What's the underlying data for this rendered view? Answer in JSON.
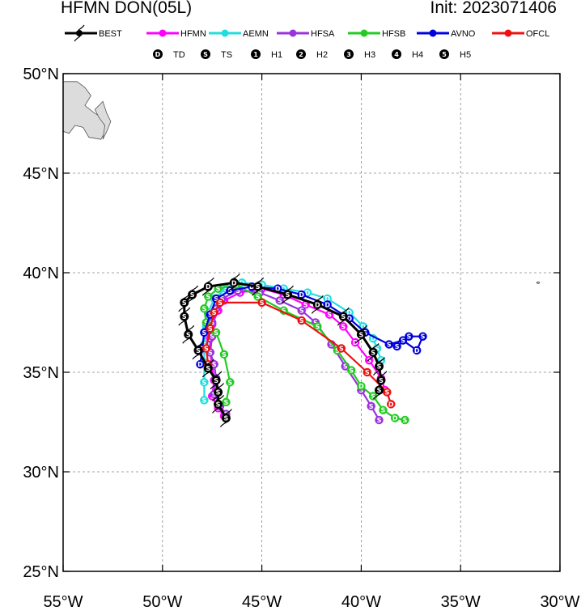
{
  "header": {
    "title": "HFMN DON(05L)",
    "init": "Init: 2023071406"
  },
  "legend": [
    {
      "name": "BEST",
      "color": "#000000"
    },
    {
      "name": "HFMN",
      "color": "#ff00ff"
    },
    {
      "name": "AEMN",
      "color": "#22dddd"
    },
    {
      "name": "HFSA",
      "color": "#9933dd"
    },
    {
      "name": "HFSB",
      "color": "#22cc22"
    },
    {
      "name": "AVNO",
      "color": "#0000dd"
    },
    {
      "name": "OFCL",
      "color": "#ee1111"
    }
  ],
  "categories": [
    {
      "glyph": "D",
      "label": "TD"
    },
    {
      "glyph": "S",
      "label": "TS"
    },
    {
      "glyph": "1",
      "label": "H1"
    },
    {
      "glyph": "2",
      "label": "H2"
    },
    {
      "glyph": "3",
      "label": "H3"
    },
    {
      "glyph": "4",
      "label": "H4"
    },
    {
      "glyph": "5",
      "label": "H5"
    }
  ],
  "axes": {
    "lon": [
      -55,
      -50,
      -45,
      -40,
      -35,
      -30
    ],
    "lon_labels": [
      "55°W",
      "50°W",
      "45°W",
      "40°W",
      "35°W",
      "30°W"
    ],
    "lat": [
      25,
      30,
      35,
      40,
      45,
      50
    ],
    "lat_labels": [
      "25°N",
      "30°N",
      "35°N",
      "40°N",
      "45°N",
      "50°N"
    ],
    "grid": true
  },
  "tracks": [
    {
      "name": "BEST",
      "color": "#000000",
      "points": [
        [
          -46.8,
          32.7
        ],
        [
          -47.2,
          33.4
        ],
        [
          -47.2,
          34.0
        ],
        [
          -47.3,
          34.6
        ],
        [
          -47.7,
          35.2
        ],
        [
          -48.2,
          36.1
        ],
        [
          -48.7,
          36.9
        ],
        [
          -48.9,
          37.8
        ],
        [
          -48.9,
          38.5
        ],
        [
          -48.5,
          38.9
        ],
        [
          -47.7,
          39.3
        ],
        [
          -46.4,
          39.5
        ],
        [
          -45.2,
          39.3
        ],
        [
          -43.7,
          38.9
        ],
        [
          -42.2,
          38.4
        ],
        [
          -40.9,
          37.8
        ],
        [
          -40.0,
          36.9
        ],
        [
          -39.4,
          36.0
        ],
        [
          -39.1,
          35.3
        ],
        [
          -39.0,
          34.6
        ],
        [
          -39.1,
          34.1
        ]
      ],
      "labels": [
        "S",
        "S",
        "S",
        "S",
        "S",
        "S",
        "S",
        "S",
        "S",
        "S",
        "D",
        "D",
        "S",
        "S",
        "D",
        "S",
        "S",
        "S",
        "S",
        "S",
        "S"
      ]
    },
    {
      "name": "HFMN",
      "color": "#ff00ff",
      "points": [
        [
          -46.9,
          32.8
        ],
        [
          -47.2,
          33.2
        ],
        [
          -47.5,
          33.8
        ],
        [
          -47.4,
          34.6
        ],
        [
          -47.5,
          35.3
        ],
        [
          -47.6,
          36.0
        ],
        [
          -47.6,
          36.7
        ],
        [
          -47.5,
          37.4
        ],
        [
          -47.2,
          38.1
        ],
        [
          -46.9,
          38.6
        ],
        [
          -46.1,
          39.0
        ],
        [
          -45.0,
          39.2
        ],
        [
          -43.9,
          38.9
        ],
        [
          -42.8,
          38.4
        ],
        [
          -41.6,
          37.9
        ],
        [
          -40.9,
          37.3
        ],
        [
          -40.3,
          36.5
        ],
        [
          -39.6,
          35.6
        ],
        [
          -39.0,
          34.7
        ],
        [
          -38.8,
          34.1
        ]
      ],
      "labels": [
        "S",
        "S",
        "S",
        "S",
        "S",
        "S",
        "S",
        "S",
        "S",
        "S",
        "S",
        "S",
        "S",
        "S",
        "S",
        "S",
        "D",
        "S",
        "S",
        "S"
      ]
    },
    {
      "name": "AEMN",
      "color": "#22dddd",
      "points": [
        [
          -47.9,
          33.6
        ],
        [
          -47.9,
          34.5
        ],
        [
          -47.9,
          35.5
        ],
        [
          -47.9,
          36.4
        ],
        [
          -47.8,
          37.3
        ],
        [
          -47.7,
          38.0
        ],
        [
          -47.4,
          38.7
        ],
        [
          -46.8,
          39.2
        ],
        [
          -46.0,
          39.5
        ],
        [
          -45.0,
          39.4
        ],
        [
          -43.9,
          39.2
        ],
        [
          -42.7,
          39.0
        ],
        [
          -41.7,
          38.7
        ],
        [
          -40.6,
          38.0
        ],
        [
          -39.9,
          37.3
        ],
        [
          -39.4,
          36.7
        ],
        [
          -39.2,
          36.2
        ],
        [
          -39.0,
          35.6
        ]
      ],
      "labels": [
        "S",
        "S",
        "S",
        "S",
        "S",
        "S",
        "S",
        "S",
        "D",
        "D",
        "D",
        "D",
        "D",
        "D",
        "D",
        "D",
        "S",
        "S"
      ]
    },
    {
      "name": "HFSA",
      "color": "#9933dd",
      "points": [
        [
          -46.8,
          32.9
        ],
        [
          -47.1,
          33.3
        ],
        [
          -47.4,
          33.9
        ],
        [
          -47.3,
          34.7
        ],
        [
          -47.4,
          35.4
        ],
        [
          -47.6,
          36.0
        ],
        [
          -47.5,
          36.8
        ],
        [
          -47.5,
          37.5
        ],
        [
          -47.3,
          38.2
        ],
        [
          -47.0,
          38.7
        ],
        [
          -46.2,
          39.1
        ],
        [
          -45.1,
          39.0
        ],
        [
          -44.1,
          38.6
        ],
        [
          -43.0,
          38.1
        ],
        [
          -42.3,
          37.5
        ],
        [
          -41.5,
          36.4
        ],
        [
          -40.8,
          35.3
        ],
        [
          -40.0,
          34.1
        ],
        [
          -39.5,
          33.3
        ],
        [
          -39.1,
          32.6
        ]
      ],
      "labels": [
        "S",
        "S",
        "S",
        "S",
        "S",
        "S",
        "S",
        "S",
        "S",
        "S",
        "S",
        "S",
        "S",
        "S",
        "S",
        "S",
        "S",
        "S",
        "S",
        "S"
      ]
    },
    {
      "name": "HFSB",
      "color": "#22cc22",
      "points": [
        [
          -46.8,
          33.5
        ],
        [
          -46.6,
          34.5
        ],
        [
          -46.9,
          35.9
        ],
        [
          -47.3,
          37.0
        ],
        [
          -47.8,
          37.5
        ],
        [
          -47.9,
          38.2
        ],
        [
          -47.7,
          38.8
        ],
        [
          -47.2,
          39.2
        ],
        [
          -46.3,
          39.4
        ],
        [
          -45.2,
          38.8
        ],
        [
          -43.9,
          38.1
        ],
        [
          -42.2,
          37.3
        ],
        [
          -41.2,
          36.1
        ],
        [
          -40.5,
          35.1
        ],
        [
          -40.0,
          34.3
        ],
        [
          -39.4,
          33.8
        ],
        [
          -38.9,
          33.1
        ],
        [
          -38.3,
          32.7
        ],
        [
          -37.8,
          32.6
        ]
      ],
      "labels": [
        "S",
        "S",
        "S",
        "S",
        "S",
        "S",
        "S",
        "S",
        "S",
        "S",
        "S",
        "S",
        "S",
        "S",
        "D",
        "S",
        "S",
        "D",
        "S"
      ]
    },
    {
      "name": "AVNO",
      "color": "#0000dd",
      "points": [
        [
          -48.1,
          35.4
        ],
        [
          -48.0,
          36.2
        ],
        [
          -47.9,
          37.0
        ],
        [
          -47.6,
          37.9
        ],
        [
          -47.3,
          38.7
        ],
        [
          -46.6,
          39.1
        ],
        [
          -45.5,
          39.3
        ],
        [
          -44.2,
          39.2
        ],
        [
          -43.0,
          38.9
        ],
        [
          -41.7,
          38.4
        ],
        [
          -40.6,
          37.7
        ],
        [
          -39.8,
          37.0
        ],
        [
          -38.6,
          36.4
        ],
        [
          -37.9,
          36.6
        ],
        [
          -37.2,
          36.1
        ],
        [
          -36.9,
          36.8
        ],
        [
          -37.6,
          36.8
        ],
        [
          -38.2,
          36.3
        ]
      ],
      "labels": [
        "D",
        "S",
        "S",
        "S",
        "S",
        "S",
        "D",
        "D",
        "D",
        "D",
        "D",
        "S",
        "S",
        "S",
        "D",
        "S",
        "S",
        "S"
      ]
    },
    {
      "name": "OFCL",
      "color": "#ee1111",
      "points": [
        [
          -47.7,
          35.4
        ],
        [
          -47.8,
          36.2
        ],
        [
          -47.6,
          37.2
        ],
        [
          -47.4,
          38.0
        ],
        [
          -47.1,
          38.5
        ],
        [
          -45.0,
          38.5
        ],
        [
          -43.0,
          37.6
        ],
        [
          -41.0,
          36.2
        ],
        [
          -39.7,
          35.0
        ],
        [
          -38.7,
          34.0
        ],
        [
          -38.5,
          33.4
        ]
      ],
      "labels": [
        "S",
        "S",
        "S",
        "S",
        "S",
        "S",
        "S",
        "S",
        "S",
        "S",
        "D"
      ]
    }
  ],
  "land": [
    {
      "name": "newfoundland"
    }
  ],
  "island_marker": {
    "lon": -31.1,
    "lat": 39.5
  }
}
